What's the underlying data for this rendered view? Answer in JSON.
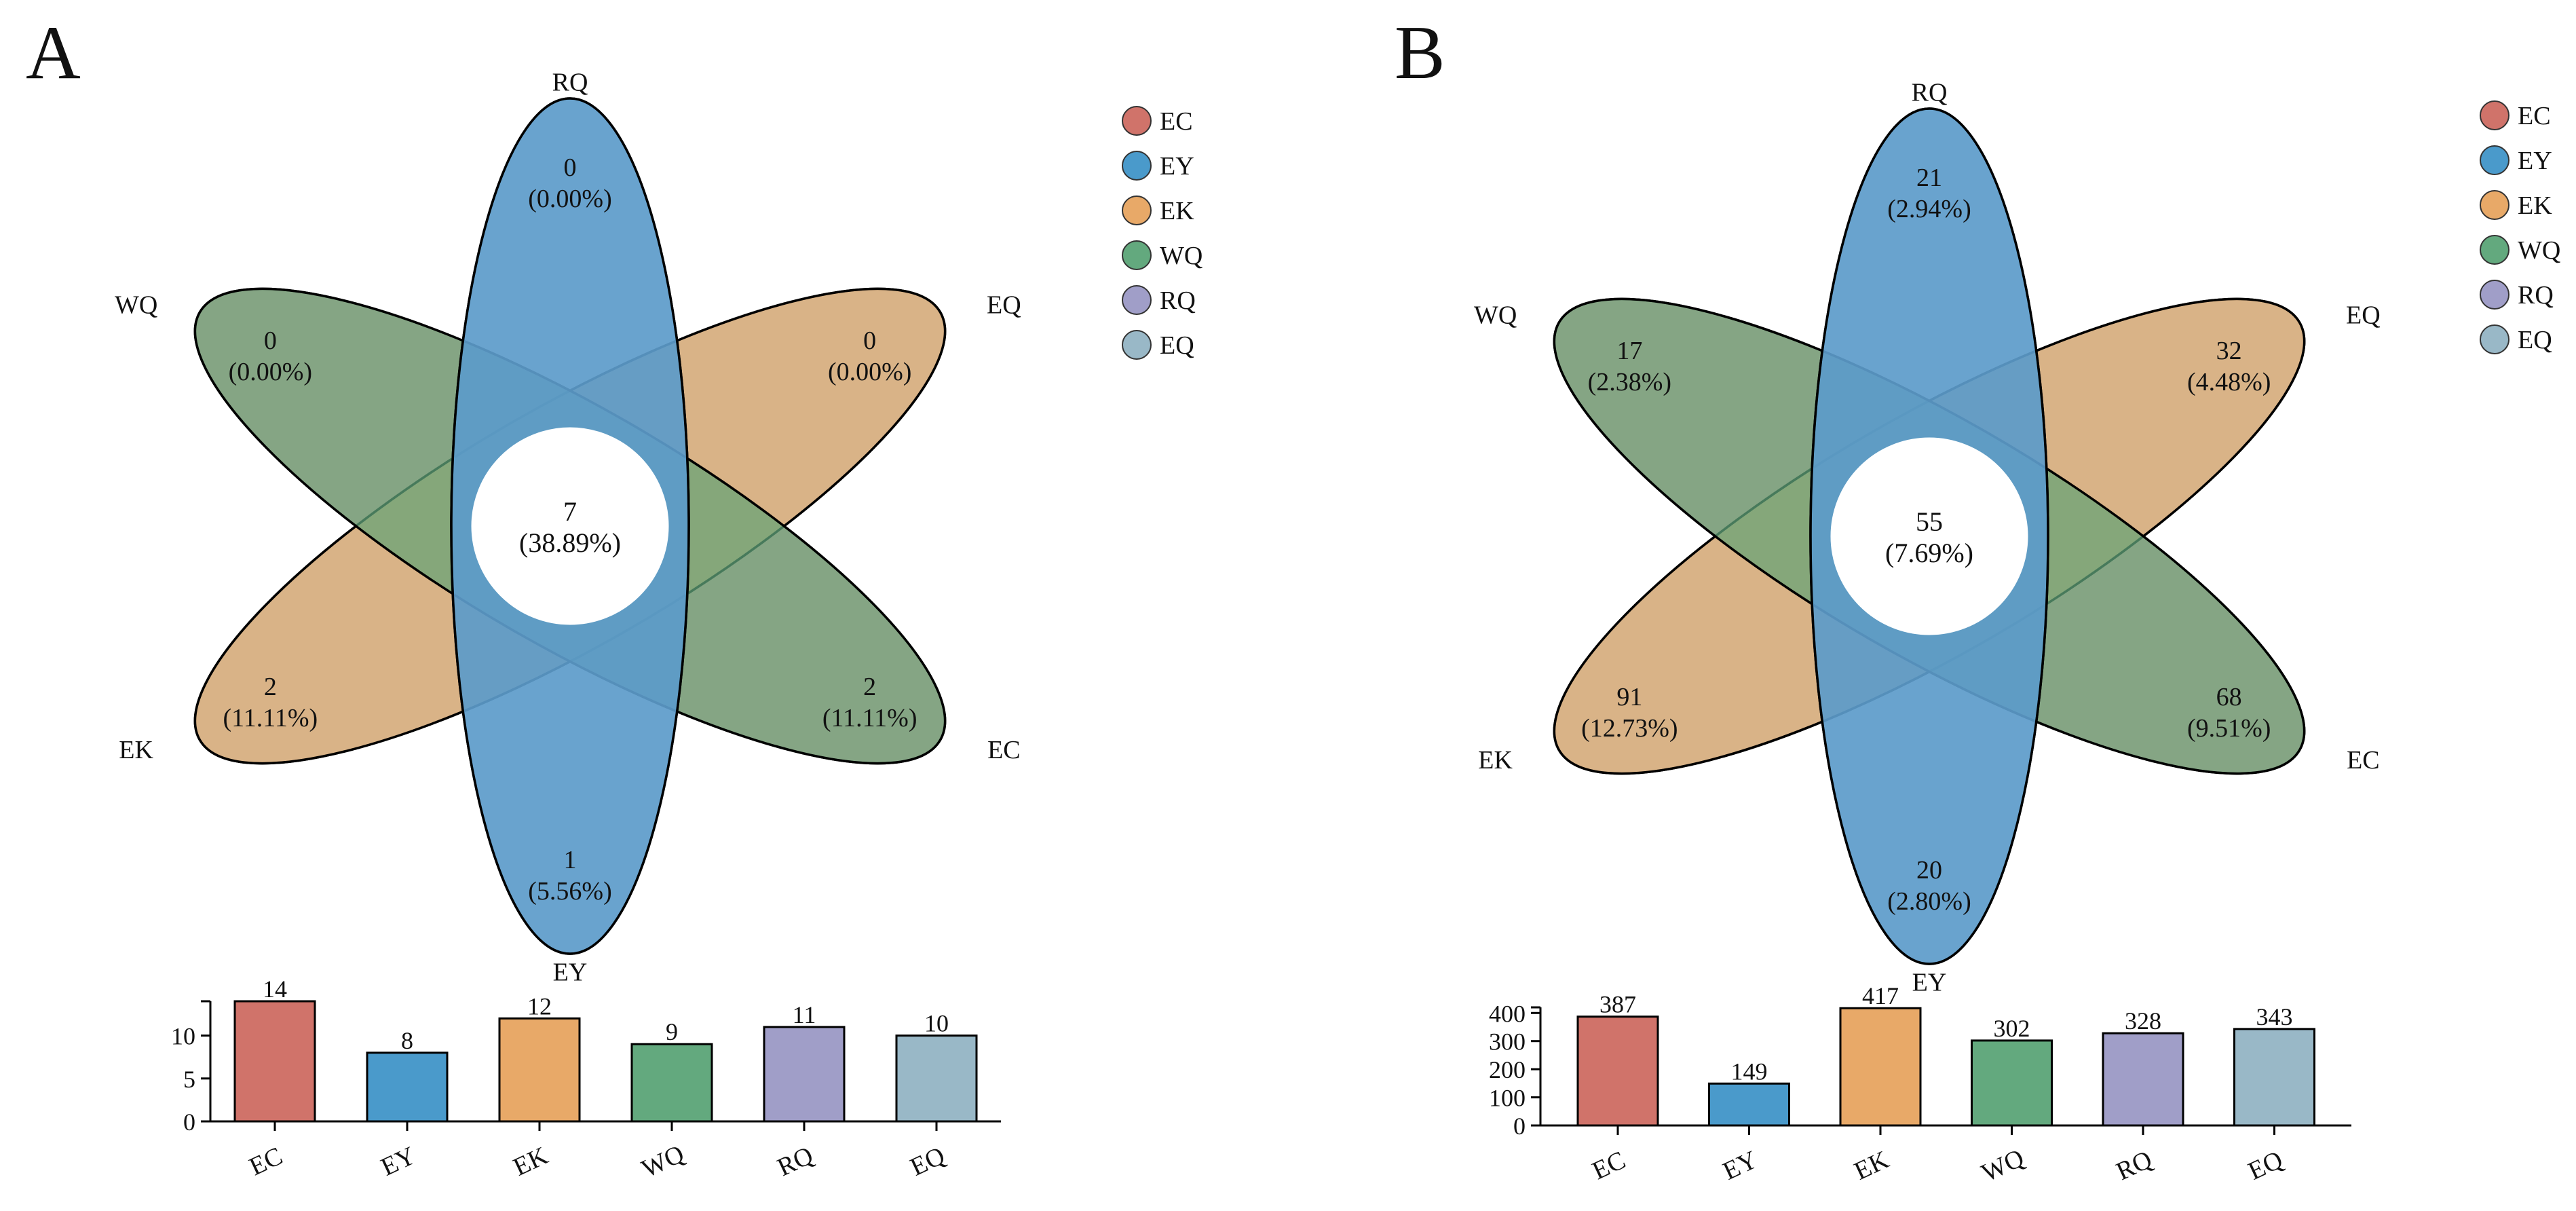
{
  "chart_data": [
    {
      "type": "venn-flower-with-bar",
      "panel_label": "A",
      "legend": [
        {
          "name": "EC",
          "color": "#d0736a"
        },
        {
          "name": "EY",
          "color": "#4a9acb"
        },
        {
          "name": "EK",
          "color": "#e8a968"
        },
        {
          "name": "WQ",
          "color": "#63a97e"
        },
        {
          "name": "RQ",
          "color": "#a09ec8"
        },
        {
          "name": "EQ",
          "color": "#99b8c7"
        }
      ],
      "center": {
        "count": "7",
        "percent": "(38.89%)"
      },
      "petals": [
        {
          "name": "RQ",
          "count": "0",
          "percent": "(0.00%)"
        },
        {
          "name": "EQ",
          "count": "0",
          "percent": "(0.00%)"
        },
        {
          "name": "EC",
          "count": "2",
          "percent": "(11.11%)"
        },
        {
          "name": "EY",
          "count": "1",
          "percent": "(5.56%)"
        },
        {
          "name": "EK",
          "count": "2",
          "percent": "(11.11%)"
        },
        {
          "name": "WQ",
          "count": "0",
          "percent": "(0.00%)"
        }
      ],
      "bar": {
        "categories": [
          "EC",
          "EY",
          "EK",
          "WQ",
          "RQ",
          "EQ"
        ],
        "values": [
          14,
          8,
          12,
          9,
          11,
          10
        ],
        "ylim": [
          0,
          14
        ],
        "yticks": [
          0,
          5,
          10
        ]
      }
    },
    {
      "type": "venn-flower-with-bar",
      "panel_label": "B",
      "legend": [
        {
          "name": "EC",
          "color": "#d0736a"
        },
        {
          "name": "EY",
          "color": "#4a9acb"
        },
        {
          "name": "EK",
          "color": "#e8a968"
        },
        {
          "name": "WQ",
          "color": "#63a97e"
        },
        {
          "name": "RQ",
          "color": "#a09ec8"
        },
        {
          "name": "EQ",
          "color": "#99b8c7"
        }
      ],
      "center": {
        "count": "55",
        "percent": "(7.69%)"
      },
      "petals": [
        {
          "name": "RQ",
          "count": "21",
          "percent": "(2.94%)"
        },
        {
          "name": "EQ",
          "count": "32",
          "percent": "(4.48%)"
        },
        {
          "name": "EC",
          "count": "68",
          "percent": "(9.51%)"
        },
        {
          "name": "EY",
          "count": "20",
          "percent": "(2.80%)"
        },
        {
          "name": "EK",
          "count": "91",
          "percent": "(12.73%)"
        },
        {
          "name": "WQ",
          "count": "17",
          "percent": "(2.38%)"
        }
      ],
      "bar": {
        "categories": [
          "EC",
          "EY",
          "EK",
          "WQ",
          "RQ",
          "EQ"
        ],
        "values": [
          387,
          149,
          417,
          302,
          328,
          343
        ],
        "ylim": [
          0,
          420
        ],
        "yticks": [
          0,
          100,
          200,
          300,
          400
        ]
      }
    }
  ]
}
